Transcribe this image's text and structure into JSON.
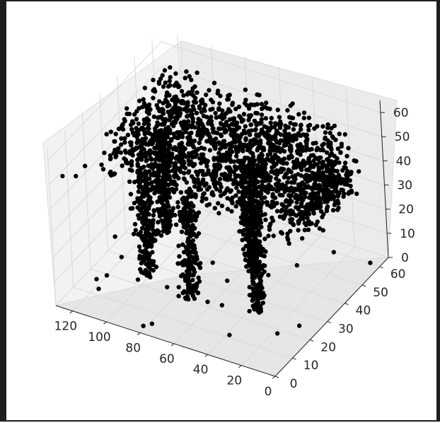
{
  "chart_data": {
    "type": "scatter",
    "projection": "3d",
    "title": "",
    "xlabel": "",
    "ylabel": "",
    "zlabel": "",
    "grid": true,
    "marker_color": "#000000",
    "xlim": [
      0,
      130
    ],
    "ylim": [
      0,
      65
    ],
    "zlim": [
      0,
      65
    ],
    "x_ticks": [
      "0",
      "20",
      "40",
      "60",
      "80",
      "100",
      "120"
    ],
    "y_ticks": [
      "0",
      "10",
      "20",
      "30",
      "40",
      "50",
      "60"
    ],
    "z_ticks": [
      "0",
      "10",
      "20",
      "30",
      "40",
      "50",
      "60"
    ],
    "series": [
      {
        "description": "dense point cloud of a four-legged animal-like object (body at z≈40-60, four legs down to z≈0)",
        "points_sample": [
          [
            20,
            45,
            50
          ],
          [
            40,
            45,
            55
          ],
          [
            60,
            40,
            58
          ],
          [
            80,
            40,
            58
          ],
          [
            100,
            35,
            55
          ],
          [
            110,
            30,
            50
          ],
          [
            30,
            50,
            45
          ],
          [
            70,
            50,
            55
          ],
          [
            90,
            45,
            52
          ],
          [
            50,
            35,
            50
          ],
          [
            35,
            25,
            10
          ],
          [
            38,
            25,
            30
          ],
          [
            70,
            20,
            5
          ],
          [
            72,
            22,
            25
          ],
          [
            100,
            25,
            5
          ],
          [
            102,
            27,
            25
          ],
          [
            110,
            45,
            5
          ],
          [
            112,
            45,
            30
          ],
          [
            10,
            55,
            35
          ],
          [
            125,
            45,
            45
          ],
          [
            15,
            30,
            40
          ],
          [
            120,
            20,
            30
          ],
          [
            5,
            40,
            20
          ],
          [
            128,
            50,
            20
          ]
        ]
      }
    ]
  }
}
